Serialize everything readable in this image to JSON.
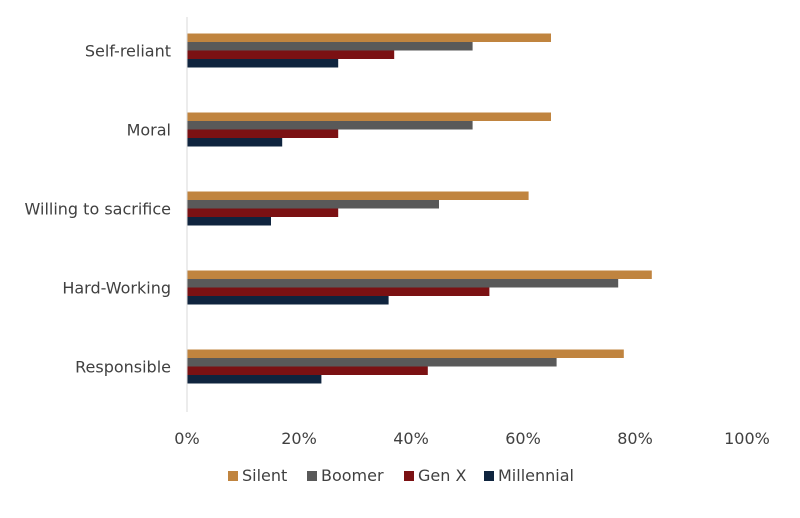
{
  "chart_data": {
    "type": "bar",
    "orientation": "horizontal",
    "categories": [
      "Self-reliant",
      "Moral",
      "Willing to sacrifice",
      "Hard-Working",
      "Responsible"
    ],
    "series": [
      {
        "name": "Silent",
        "color": "#C0843F",
        "values": [
          65,
          65,
          61,
          83,
          78
        ]
      },
      {
        "name": "Boomer",
        "color": "#595959",
        "values": [
          51,
          51,
          45,
          77,
          66
        ]
      },
      {
        "name": "Gen X",
        "color": "#7B1113",
        "values": [
          37,
          27,
          27,
          54,
          43
        ]
      },
      {
        "name": "Millennial",
        "color": "#0F243E",
        "values": [
          27,
          17,
          15,
          36,
          24
        ]
      }
    ],
    "xlim": [
      0,
      100
    ],
    "xticks": [
      "0%",
      "20%",
      "40%",
      "60%",
      "80%",
      "100%"
    ],
    "legend_position": "bottom",
    "grid": false,
    "title": "",
    "xlabel": "",
    "ylabel": ""
  }
}
